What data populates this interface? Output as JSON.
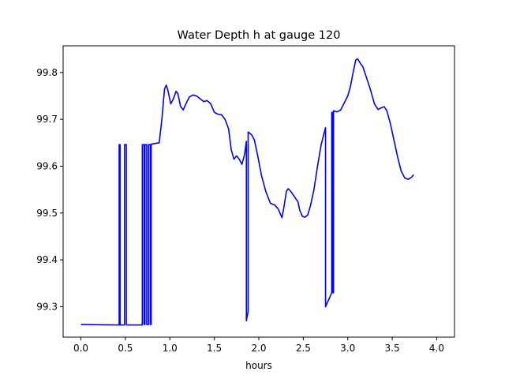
{
  "chart_data": {
    "type": "line",
    "title": "Water Depth h at gauge 120",
    "xlabel": "hours",
    "ylabel": "",
    "xlim": [
      -0.2,
      4.2
    ],
    "ylim": [
      99.235,
      99.857
    ],
    "xticks": [
      0.0,
      0.5,
      1.0,
      1.5,
      2.0,
      2.5,
      3.0,
      3.5,
      4.0
    ],
    "xtick_labels": [
      "0.0",
      "0.5",
      "1.0",
      "1.5",
      "2.0",
      "2.5",
      "3.0",
      "3.5",
      "4.0"
    ],
    "yticks": [
      99.3,
      99.4,
      99.5,
      99.6,
      99.7,
      99.8
    ],
    "ytick_labels": [
      "99.3",
      "99.4",
      "99.5",
      "99.6",
      "99.7",
      "99.8"
    ],
    "grid": false,
    "series": [
      {
        "color": "#0000ff",
        "points": [
          [
            0.0,
            99.262
          ],
          [
            0.42,
            99.261
          ],
          [
            0.43,
            99.261
          ],
          [
            0.43,
            99.646
          ],
          [
            0.44,
            99.646
          ],
          [
            0.44,
            99.261
          ],
          [
            0.49,
            99.261
          ],
          [
            0.49,
            99.646
          ],
          [
            0.51,
            99.646
          ],
          [
            0.51,
            99.261
          ],
          [
            0.68,
            99.261
          ],
          [
            0.69,
            99.261
          ],
          [
            0.69,
            99.646
          ],
          [
            0.71,
            99.646
          ],
          [
            0.71,
            99.262
          ],
          [
            0.72,
            99.262
          ],
          [
            0.72,
            99.646
          ],
          [
            0.74,
            99.646
          ],
          [
            0.74,
            99.262
          ],
          [
            0.76,
            99.262
          ],
          [
            0.76,
            99.646
          ],
          [
            0.78,
            99.646
          ],
          [
            0.78,
            99.262
          ],
          [
            0.79,
            99.262
          ],
          [
            0.79,
            99.647
          ],
          [
            0.88,
            99.65
          ],
          [
            0.91,
            99.7
          ],
          [
            0.94,
            99.765
          ],
          [
            0.96,
            99.773
          ],
          [
            0.98,
            99.76
          ],
          [
            1.01,
            99.733
          ],
          [
            1.04,
            99.744
          ],
          [
            1.07,
            99.76
          ],
          [
            1.09,
            99.755
          ],
          [
            1.12,
            99.728
          ],
          [
            1.15,
            99.72
          ],
          [
            1.18,
            99.733
          ],
          [
            1.22,
            99.748
          ],
          [
            1.26,
            99.752
          ],
          [
            1.3,
            99.75
          ],
          [
            1.34,
            99.744
          ],
          [
            1.38,
            99.738
          ],
          [
            1.42,
            99.74
          ],
          [
            1.46,
            99.733
          ],
          [
            1.5,
            99.715
          ],
          [
            1.54,
            99.711
          ],
          [
            1.58,
            99.71
          ],
          [
            1.62,
            99.7
          ],
          [
            1.66,
            99.68
          ],
          [
            1.69,
            99.635
          ],
          [
            1.72,
            99.615
          ],
          [
            1.75,
            99.622
          ],
          [
            1.78,
            99.615
          ],
          [
            1.81,
            99.604
          ],
          [
            1.84,
            99.625
          ],
          [
            1.86,
            99.653
          ],
          [
            1.86,
            99.27
          ],
          [
            1.88,
            99.29
          ],
          [
            1.88,
            99.673
          ],
          [
            1.92,
            99.667
          ],
          [
            1.95,
            99.656
          ],
          [
            1.99,
            99.62
          ],
          [
            2.03,
            99.58
          ],
          [
            2.08,
            99.545
          ],
          [
            2.13,
            99.521
          ],
          [
            2.18,
            99.517
          ],
          [
            2.22,
            99.508
          ],
          [
            2.26,
            99.49
          ],
          [
            2.28,
            99.51
          ],
          [
            2.31,
            99.546
          ],
          [
            2.33,
            99.552
          ],
          [
            2.36,
            99.546
          ],
          [
            2.4,
            99.535
          ],
          [
            2.44,
            99.524
          ],
          [
            2.46,
            99.506
          ],
          [
            2.49,
            99.493
          ],
          [
            2.52,
            99.491
          ],
          [
            2.55,
            99.496
          ],
          [
            2.58,
            99.515
          ],
          [
            2.62,
            99.55
          ],
          [
            2.66,
            99.6
          ],
          [
            2.7,
            99.645
          ],
          [
            2.73,
            99.668
          ],
          [
            2.75,
            99.682
          ],
          [
            2.75,
            99.3
          ],
          [
            2.82,
            99.33
          ],
          [
            2.82,
            99.715
          ],
          [
            2.83,
            99.715
          ],
          [
            2.83,
            99.33
          ],
          [
            2.84,
            99.33
          ],
          [
            2.84,
            99.718
          ],
          [
            2.88,
            99.716
          ],
          [
            2.92,
            99.72
          ],
          [
            2.96,
            99.735
          ],
          [
            3.0,
            99.75
          ],
          [
            3.03,
            99.77
          ],
          [
            3.06,
            99.8
          ],
          [
            3.09,
            99.827
          ],
          [
            3.11,
            99.829
          ],
          [
            3.14,
            99.82
          ],
          [
            3.17,
            99.812
          ],
          [
            3.2,
            99.795
          ],
          [
            3.23,
            99.778
          ],
          [
            3.26,
            99.76
          ],
          [
            3.3,
            99.733
          ],
          [
            3.34,
            99.721
          ],
          [
            3.37,
            99.724
          ],
          [
            3.41,
            99.727
          ],
          [
            3.44,
            99.718
          ],
          [
            3.48,
            99.69
          ],
          [
            3.52,
            99.655
          ],
          [
            3.56,
            99.62
          ],
          [
            3.6,
            99.59
          ],
          [
            3.64,
            99.575
          ],
          [
            3.68,
            99.572
          ],
          [
            3.72,
            99.577
          ],
          [
            3.74,
            99.582
          ]
        ]
      }
    ]
  }
}
